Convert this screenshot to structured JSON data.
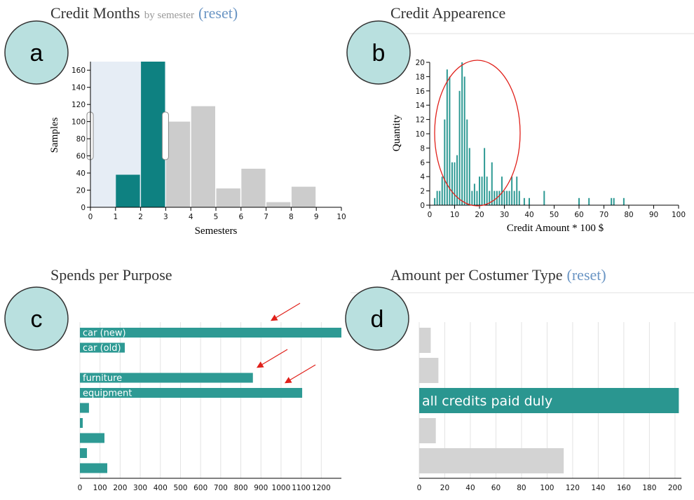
{
  "panel_labels": [
    "a",
    "b",
    "c",
    "d"
  ],
  "chart_data": [
    {
      "type": "histogram",
      "title": "Credit Months",
      "subtitle": "by semester",
      "reset": "(reset)",
      "x_label": "Semesters",
      "y_label": "Samples",
      "bins": [
        0,
        1,
        2,
        3,
        4,
        5,
        6,
        7,
        8,
        9
      ],
      "values": [
        0,
        38,
        170,
        100,
        118,
        22,
        45,
        6,
        24
      ],
      "xlim": [
        0,
        10
      ],
      "xticks": [
        0,
        1,
        2,
        3,
        4,
        5,
        6,
        7,
        8,
        9,
        10
      ],
      "ylim": [
        0,
        170
      ],
      "yticks": [
        0,
        20,
        40,
        60,
        80,
        100,
        120,
        140,
        160
      ],
      "selection": [
        0,
        3
      ],
      "color": "#0e8181",
      "inactive_color": "#cccccc"
    },
    {
      "type": "bar",
      "title": "Credit Appearence",
      "x_label": "Credit Amount * 100 $",
      "y_label": "Quantity",
      "x": [
        2,
        3,
        4,
        5,
        6,
        7,
        8,
        9,
        10,
        11,
        12,
        13,
        14,
        15,
        16,
        17,
        18,
        19,
        20,
        21,
        22,
        23,
        24,
        25,
        26,
        27,
        28,
        29,
        30,
        31,
        32,
        33,
        34,
        35,
        36,
        38,
        40,
        46,
        60,
        64,
        73,
        74,
        78
      ],
      "values": [
        1,
        2,
        2,
        4,
        12,
        19,
        18,
        6,
        6,
        7,
        16,
        20,
        18,
        12,
        8,
        2,
        3,
        2,
        4,
        4,
        8,
        4,
        2,
        6,
        2,
        2,
        2,
        4,
        2,
        2,
        2,
        4,
        2,
        4,
        2,
        1,
        1,
        2,
        1,
        1,
        1,
        1,
        1
      ],
      "xlim": [
        0,
        100
      ],
      "xticks": [
        0,
        10,
        20,
        30,
        40,
        50,
        60,
        70,
        80,
        90,
        100
      ],
      "ylim": [
        0,
        20
      ],
      "yticks": [
        0,
        2,
        4,
        6,
        8,
        10,
        12,
        14,
        16,
        18,
        20
      ],
      "color": "#2e9a94"
    },
    {
      "type": "hbar",
      "title": "Spends per Purpose",
      "categories": [
        "car (new)",
        "car (old)",
        null,
        "furniture",
        "equipment",
        null,
        null,
        null,
        null,
        null
      ],
      "values": [
        1300,
        223,
        0,
        860,
        1105,
        45,
        14,
        122,
        35,
        136
      ],
      "xlim": [
        0,
        1300
      ],
      "xticks": [
        0,
        100,
        200,
        300,
        400,
        500,
        600,
        700,
        800,
        900,
        1000,
        1100,
        1200
      ],
      "color": "#2e9a94",
      "grid": true
    },
    {
      "type": "hbar",
      "title": "Amount per Costumer Type",
      "reset": "(reset)",
      "categories": [
        null,
        null,
        "all credits paid duly",
        null,
        null
      ],
      "values": [
        9,
        15,
        203,
        13,
        113
      ],
      "xlim": [
        0,
        205
      ],
      "xticks": [
        0,
        20,
        40,
        60,
        80,
        100,
        120,
        140,
        160,
        180,
        200
      ],
      "colors": [
        "#d3d3d3",
        "#d3d3d3",
        "#2a9690",
        "#d3d3d3",
        "#d3d3d3"
      ],
      "grid": true
    }
  ]
}
